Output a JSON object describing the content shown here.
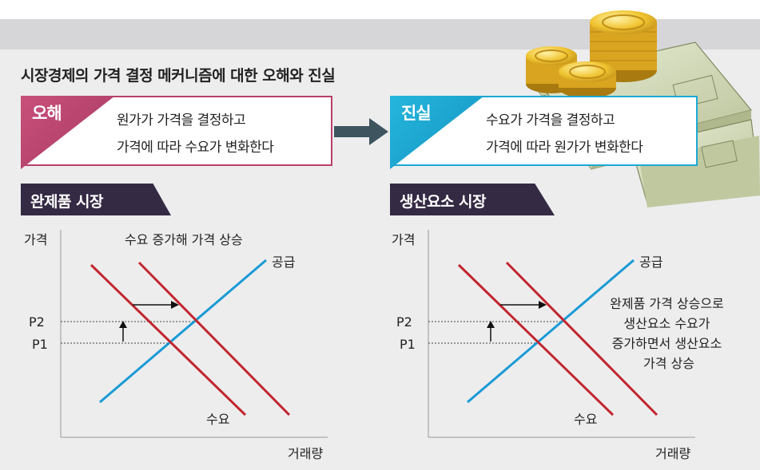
{
  "title": "시장경제의 가격 결정 메커니즘에 대한 오해와 진실",
  "myth": {
    "tag": "오해",
    "line1": "원가가 가격을 결정하고",
    "line2": "가격에 따라 수요가 변화한다"
  },
  "truth": {
    "tag": "진실",
    "line1": "수요가 가격을 결정하고",
    "line2": "가격에 따라 원가가 변화한다"
  },
  "colors": {
    "myth": "#b7406a",
    "truth": "#1aa9d4",
    "section": "#352a44",
    "supply": "#1a9ad6",
    "demand": "#c2262e"
  },
  "left_chart": {
    "section": "완제품 시장",
    "ylabel": "가격",
    "xlabel": "거래량",
    "annotation": "수요 증가해 가격 상승",
    "supply_label": "공급",
    "demand_label": "수요",
    "p2": "P2",
    "p1": "P1"
  },
  "right_chart": {
    "section": "생산요소 시장",
    "ylabel": "가격",
    "xlabel": "거래량",
    "supply_label": "공급",
    "demand_label": "수요",
    "p2": "P2",
    "p1": "P1",
    "note_lines": [
      "완제품 가격 상승으로",
      "생산요소 수요가",
      "증가하면서 생산요소",
      "가격 상승"
    ]
  }
}
